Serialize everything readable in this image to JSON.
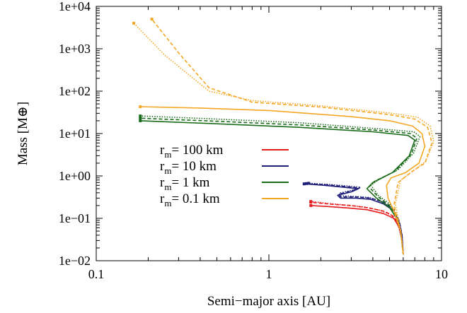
{
  "chart_data": {
    "type": "line",
    "xlabel": "Semi−major axis [AU]",
    "ylabel": "Mass [M⊕]",
    "x_scale": "log",
    "y_scale": "log",
    "xlim": [
      0.1,
      10
    ],
    "ylim": [
      0.01,
      10000
    ],
    "x_ticks": [
      {
        "value": 0.1,
        "label": "0.1"
      },
      {
        "value": 1,
        "label": "1"
      },
      {
        "value": 10,
        "label": "10"
      }
    ],
    "y_ticks": [
      {
        "value": 0.01,
        "label": "1e−02"
      },
      {
        "value": 0.1,
        "label": "1e−01"
      },
      {
        "value": 1,
        "label": "1e+00"
      },
      {
        "value": 10,
        "label": "1e+01"
      },
      {
        "value": 100,
        "label": "1e+02"
      },
      {
        "value": 1000,
        "label": "1e+03"
      },
      {
        "value": 10000,
        "label": "1e+04"
      }
    ],
    "legend_position": "center-left",
    "legend": [
      {
        "prefix": "r",
        "sub": "m",
        "text": "= 100 km",
        "color": "#e41a1c"
      },
      {
        "prefix": "r",
        "sub": "m",
        "text": "= 10 km",
        "color": "#1f1f7a"
      },
      {
        "prefix": "r",
        "sub": "m",
        "text": "= 1 km",
        "color": "#1a6b1a"
      },
      {
        "prefix": "r",
        "sub": "m",
        "text": "= 0.1 km",
        "color": "#f5a623"
      }
    ],
    "series": [
      {
        "name": "r_m = 100 km",
        "color": "#e41a1c",
        "variant": "solid",
        "x": [
          6.0,
          5.9,
          5.7,
          5.3,
          4.6,
          3.7,
          2.9,
          2.2,
          1.75
        ],
        "y": [
          0.014,
          0.03,
          0.06,
          0.1,
          0.13,
          0.16,
          0.175,
          0.19,
          0.2
        ]
      },
      {
        "name": "r_m = 100 km",
        "color": "#e41a1c",
        "variant": "dashed",
        "x": [
          6.0,
          5.9,
          5.7,
          5.3,
          4.7,
          3.8,
          3.0,
          2.3,
          1.75
        ],
        "y": [
          0.014,
          0.03,
          0.065,
          0.11,
          0.145,
          0.175,
          0.2,
          0.215,
          0.24
        ]
      },
      {
        "name": "r_m = 100 km",
        "color": "#e41a1c",
        "variant": "dotted",
        "x": [
          6.0,
          5.9,
          5.6,
          5.1,
          4.4,
          3.6,
          2.8,
          2.2,
          1.75
        ],
        "y": [
          0.014,
          0.032,
          0.07,
          0.12,
          0.155,
          0.185,
          0.205,
          0.225,
          0.25
        ]
      },
      {
        "name": "r_m = 10 km",
        "color": "#1f1f7a",
        "variant": "solid",
        "x": [
          6.0,
          5.9,
          5.7,
          5.3,
          4.6,
          3.9,
          3.2,
          2.6,
          2.5,
          3.0,
          3.3,
          2.6,
          2.1,
          1.6
        ],
        "y": [
          0.014,
          0.04,
          0.08,
          0.15,
          0.22,
          0.28,
          0.3,
          0.3,
          0.35,
          0.42,
          0.5,
          0.55,
          0.6,
          0.65
        ]
      },
      {
        "name": "r_m = 10 km",
        "color": "#1f1f7a",
        "variant": "dashed",
        "x": [
          6.0,
          5.9,
          5.7,
          5.3,
          4.6,
          3.9,
          3.2,
          2.6,
          2.55,
          3.05,
          3.35,
          2.65,
          2.15,
          1.65
        ],
        "y": [
          0.014,
          0.042,
          0.085,
          0.16,
          0.24,
          0.3,
          0.32,
          0.32,
          0.37,
          0.45,
          0.52,
          0.57,
          0.62,
          0.66
        ]
      },
      {
        "name": "r_m = 10 km",
        "color": "#1f1f7a",
        "variant": "dotted",
        "x": [
          6.0,
          5.8,
          5.6,
          5.2,
          4.5,
          3.8,
          3.1,
          2.6,
          2.55,
          3.1,
          3.4,
          2.7,
          2.2,
          1.7
        ],
        "y": [
          0.014,
          0.045,
          0.09,
          0.17,
          0.25,
          0.31,
          0.33,
          0.34,
          0.39,
          0.47,
          0.54,
          0.59,
          0.63,
          0.67
        ]
      },
      {
        "name": "r_m = 1 km",
        "color": "#1a6b1a",
        "variant": "solid",
        "x": [
          6.0,
          5.8,
          5.5,
          5.0,
          4.2,
          3.7,
          4.0,
          5.2,
          6.5,
          7.0,
          6.4,
          4.0,
          1.5,
          0.5,
          0.18
        ],
        "y": [
          0.014,
          0.05,
          0.1,
          0.18,
          0.3,
          0.5,
          0.7,
          1.2,
          3.0,
          7.0,
          9.0,
          11.0,
          14.0,
          17.0,
          20.0
        ]
      },
      {
        "name": "r_m = 1 km",
        "color": "#1a6b1a",
        "variant": "dashed",
        "x": [
          6.0,
          5.8,
          5.5,
          5.0,
          4.3,
          3.8,
          4.1,
          5.4,
          6.7,
          7.2,
          6.6,
          4.1,
          1.5,
          0.5,
          0.18
        ],
        "y": [
          0.014,
          0.05,
          0.11,
          0.2,
          0.32,
          0.55,
          0.75,
          1.3,
          3.3,
          7.8,
          10.0,
          12.0,
          16.0,
          19.5,
          23.0
        ]
      },
      {
        "name": "r_m = 1 km",
        "color": "#1a6b1a",
        "variant": "dotted",
        "x": [
          6.0,
          5.8,
          5.5,
          5.0,
          4.3,
          3.9,
          4.3,
          5.6,
          6.9,
          7.5,
          6.9,
          4.3,
          1.5,
          0.5,
          0.18
        ],
        "y": [
          0.014,
          0.05,
          0.12,
          0.22,
          0.35,
          0.6,
          0.8,
          1.4,
          3.5,
          8.5,
          11.0,
          13.0,
          18.0,
          22.0,
          26.0
        ]
      },
      {
        "name": "r_m = 0.1 km",
        "color": "#f5a623",
        "variant": "solid",
        "x": [
          6.0,
          5.8,
          5.3,
          4.9,
          4.8,
          5.1,
          6.2,
          7.4,
          8.0,
          7.7,
          6.8,
          5.0,
          3.0,
          1.0,
          0.4,
          0.18
        ],
        "y": [
          0.014,
          0.05,
          0.15,
          0.3,
          0.6,
          0.9,
          1.2,
          2.0,
          5.0,
          10.0,
          15.0,
          20.0,
          25.0,
          35.0,
          40.0,
          43.0
        ]
      },
      {
        "name": "r_m = 0.1 km",
        "color": "#f5a623",
        "variant": "dashed",
        "x": [
          6.0,
          5.8,
          5.3,
          5.6,
          6.8,
          8.0,
          8.8,
          8.3,
          7.0,
          5.0,
          2.0,
          0.8,
          0.45,
          0.3,
          0.21
        ],
        "y": [
          0.014,
          0.05,
          0.2,
          0.7,
          1.3,
          2.0,
          6.0,
          14.0,
          22.0,
          28.0,
          42.0,
          55.0,
          120.0,
          800.0,
          5000.0
        ]
      },
      {
        "name": "r_m = 0.1 km",
        "color": "#f5a623",
        "variant": "dotted",
        "x": [
          6.0,
          5.8,
          5.4,
          5.8,
          7.0,
          8.1,
          9.0,
          8.6,
          7.3,
          5.2,
          2.0,
          0.8,
          0.45,
          0.25,
          0.165
        ],
        "y": [
          0.014,
          0.05,
          0.22,
          0.8,
          1.4,
          2.2,
          6.5,
          15.0,
          24.0,
          30.0,
          45.0,
          60.0,
          100.0,
          700.0,
          4000.0
        ]
      }
    ]
  }
}
